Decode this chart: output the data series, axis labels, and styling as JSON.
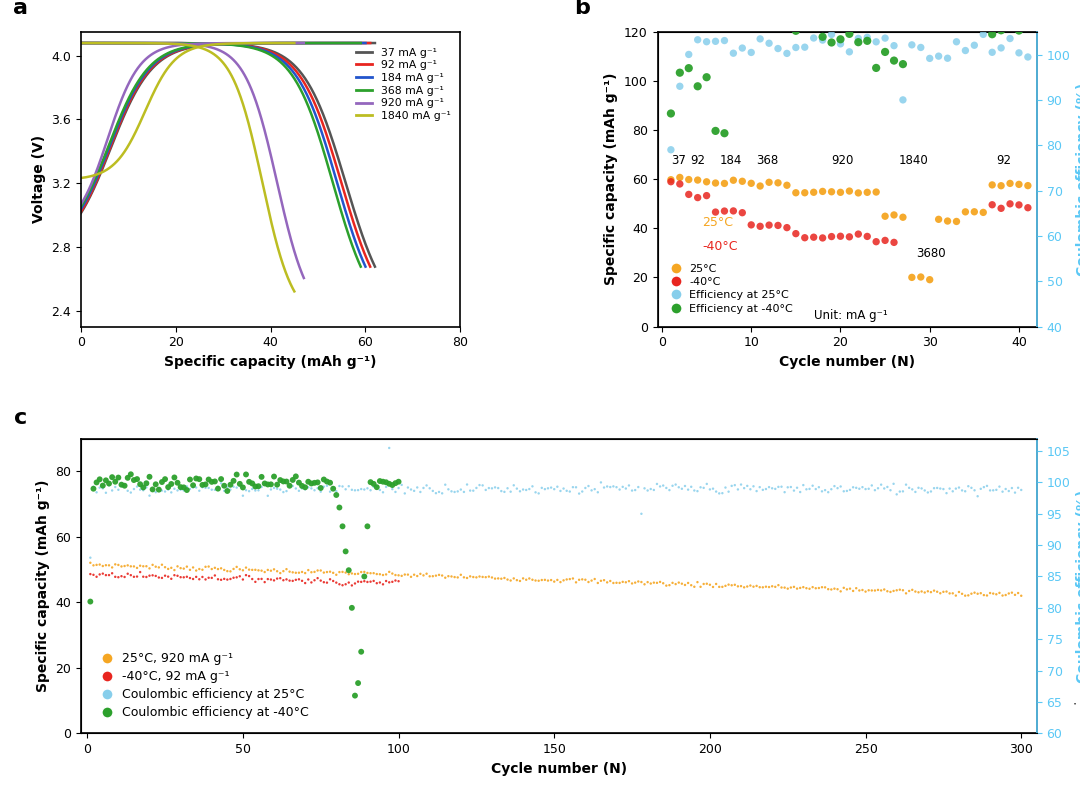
{
  "panel_a": {
    "xlabel": "Specific capacity (mAh g⁻¹)",
    "ylabel": "Voltage (V)",
    "xlim": [
      0,
      80
    ],
    "ylim": [
      2.3,
      4.15
    ],
    "yticks": [
      2.4,
      2.8,
      3.2,
      3.6,
      4.0
    ],
    "xticks": [
      0,
      20,
      40,
      60,
      80
    ],
    "legend_labels": [
      "37 mA g⁻¹",
      "92 mA g⁻¹",
      "184 mA g⁻¹",
      "368 mA g⁻¹",
      "920 mA g⁻¹",
      "1840 mA g⁻¹"
    ],
    "colors": [
      "#555555",
      "#e8251f",
      "#2255cc",
      "#2ca02c",
      "#9467bd",
      "#bcbd22"
    ]
  },
  "panel_b": {
    "xlabel": "Cycle number (N)",
    "ylabel": "Specific capacity (mAh g⁻¹)",
    "ylabel2": "Coulombic efficiency (%)",
    "xlim": [
      -0.5,
      42
    ],
    "ylim": [
      0,
      120
    ],
    "ylim2": [
      40,
      105
    ],
    "yticks": [
      0,
      20,
      40,
      60,
      80,
      100,
      120
    ],
    "yticks2": [
      40,
      50,
      60,
      70,
      80,
      90,
      100
    ],
    "xticks": [
      0,
      10,
      20,
      30,
      40
    ]
  },
  "panel_c": {
    "xlabel": "Cycle number (N)",
    "ylabel": "Specific capacity (mAh g⁻¹)",
    "ylabel2": "Coulombic efficiency (%)",
    "xlim": [
      -2,
      305
    ],
    "ylim": [
      0,
      90
    ],
    "ylim2": [
      60,
      107
    ],
    "yticks": [
      0,
      20,
      40,
      60,
      80
    ],
    "yticks2": [
      60,
      65,
      70,
      75,
      80,
      85,
      90,
      95,
      100,
      105
    ],
    "xticks": [
      0,
      50,
      100,
      150,
      200,
      250,
      300
    ]
  }
}
